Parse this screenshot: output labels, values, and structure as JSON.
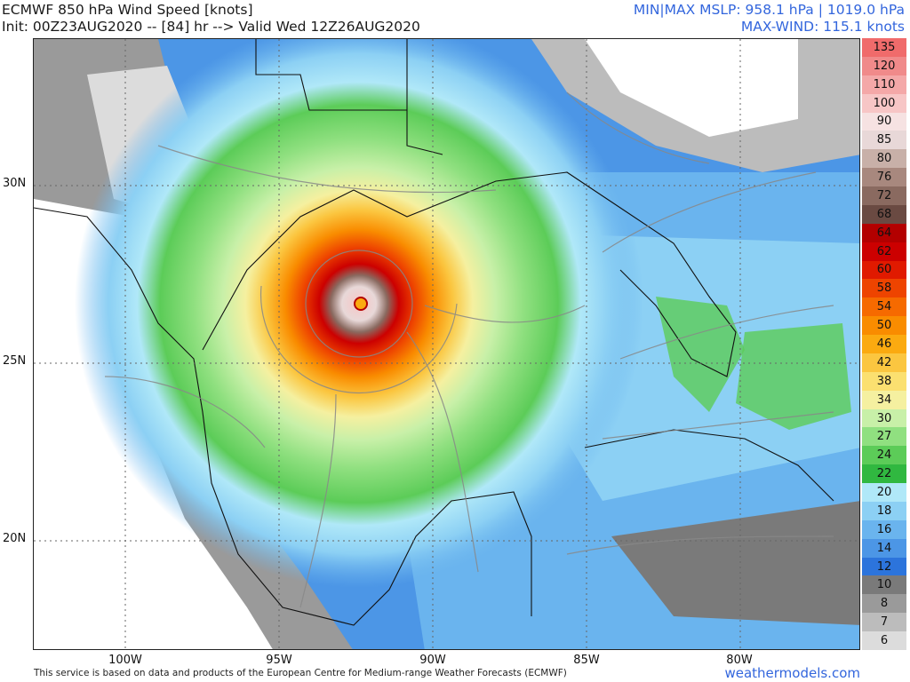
{
  "header": {
    "title": "ECMWF 850 hPa Wind Speed [knots]",
    "init_line": "Init: 00Z23AUG2020 -- [84] hr --> Valid Wed 12Z26AUG2020",
    "mslp_line": "MIN|MAX MSLP: 958.1 hPa | 1019.0 hPa",
    "maxwind_line": "MAX-WIND: 115.1 knots"
  },
  "axes": {
    "lat_labels": [
      "30N",
      "25N",
      "20N"
    ],
    "lon_labels": [
      "100W",
      "95W",
      "90W",
      "85W",
      "80W"
    ]
  },
  "legend": {
    "levels": [
      "135",
      "120",
      "110",
      "100",
      "90",
      "85",
      "80",
      "76",
      "72",
      "68",
      "64",
      "62",
      "60",
      "58",
      "54",
      "50",
      "46",
      "42",
      "38",
      "34",
      "30",
      "27",
      "24",
      "22",
      "20",
      "18",
      "16",
      "14",
      "12",
      "10",
      "8",
      "7",
      "6"
    ],
    "colors": [
      "#f06b6b",
      "#f08a8a",
      "#f4a8a8",
      "#f7c6c6",
      "#f6e2e2",
      "#e8d8d8",
      "#c8b0a8",
      "#a8887e",
      "#8a6a60",
      "#6a4a42",
      "#b30000",
      "#cc0000",
      "#e01a00",
      "#ee4400",
      "#f66a00",
      "#f98c00",
      "#fbaa10",
      "#fbc640",
      "#fbe070",
      "#f5f0a0",
      "#c8f0a8",
      "#90e080",
      "#5ccc58",
      "#30b840",
      "#b0e8f8",
      "#8cd0f4",
      "#6ab4ee",
      "#4c96e6",
      "#2c74dc",
      "#7a7a7a",
      "#9a9a9a",
      "#bcbcbc",
      "#dcdcdc"
    ]
  },
  "storm": {
    "min_mslp": "958.1 hPa",
    "max_mslp": "1019.0 hPa",
    "max_wind": "115.1 knots"
  },
  "footer": {
    "note": "This service is based on data and products of the European Centre for Medium-range Weather Forecasts (ECMWF)",
    "brand": "weathermodels.com"
  }
}
